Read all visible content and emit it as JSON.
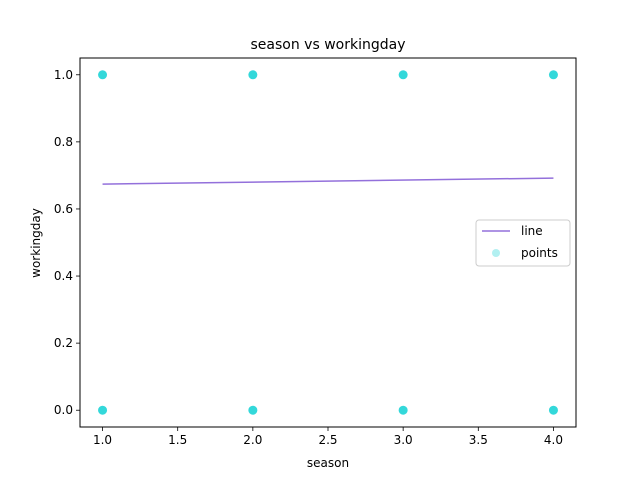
{
  "chart_data": {
    "type": "scatter",
    "title": "season vs workingday",
    "xlabel": "season",
    "ylabel": "workingday",
    "xlim": [
      0.85,
      4.15
    ],
    "ylim": [
      -0.05,
      1.05
    ],
    "x_ticks": [
      "1.0",
      "1.5",
      "2.0",
      "2.5",
      "3.0",
      "3.5",
      "4.0"
    ],
    "y_ticks": [
      "0.0",
      "0.2",
      "0.4",
      "0.6",
      "0.8",
      "1.0"
    ],
    "grid": false,
    "legend_position": "center-right",
    "series": [
      {
        "name": "line",
        "kind": "line",
        "color": "#9370DB",
        "x": [
          1.0,
          4.0
        ],
        "y": [
          0.674,
          0.692
        ]
      },
      {
        "name": "points",
        "kind": "scatter",
        "color": "#00CED1",
        "x": [
          1.0,
          1.0,
          2.0,
          2.0,
          3.0,
          3.0,
          4.0,
          4.0
        ],
        "y": [
          1.0,
          0.0,
          1.0,
          0.0,
          1.0,
          0.0,
          1.0,
          0.0
        ]
      }
    ]
  }
}
